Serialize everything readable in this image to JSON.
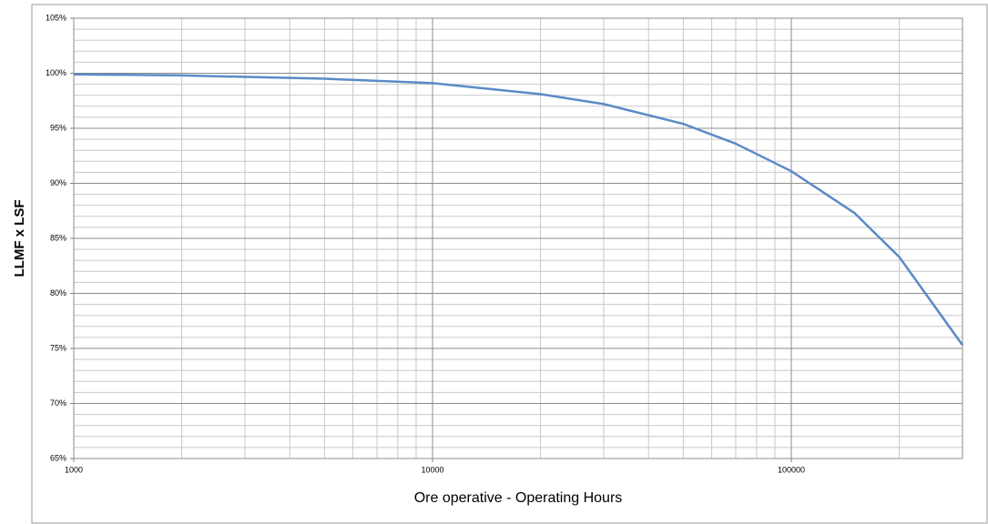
{
  "chart_data": {
    "type": "line",
    "x_label": "Ore operative - Operating Hours",
    "y_label": "LLMF x LSF",
    "x": [
      1000,
      2000,
      5000,
      10000,
      20000,
      30000,
      50000,
      70000,
      100000,
      150000,
      200000,
      300000
    ],
    "series": [
      {
        "name": "LLMF x LSF",
        "color": "#5b8ac6",
        "values": [
          99.9,
          99.8,
          99.5,
          99.1,
          98.1,
          97.2,
          95.4,
          93.6,
          91.1,
          87.3,
          83.3,
          75.3
        ]
      }
    ],
    "xscale": "log",
    "xlim": [
      1000,
      300000
    ],
    "xticks": [
      1000,
      10000,
      100000
    ],
    "ylim": [
      65,
      105
    ],
    "yticks": [
      {
        "value": 65,
        "label": "65%"
      },
      {
        "value": 70,
        "label": "70%"
      },
      {
        "value": 75,
        "label": "75%"
      },
      {
        "value": 80,
        "label": "80%"
      },
      {
        "value": 85,
        "label": "85%"
      },
      {
        "value": 90,
        "label": "90%"
      },
      {
        "value": 95,
        "label": "95%"
      },
      {
        "value": 100,
        "label": "100%"
      },
      {
        "value": 105,
        "label": "105%"
      }
    ],
    "grid": true,
    "minor_grid": true
  }
}
